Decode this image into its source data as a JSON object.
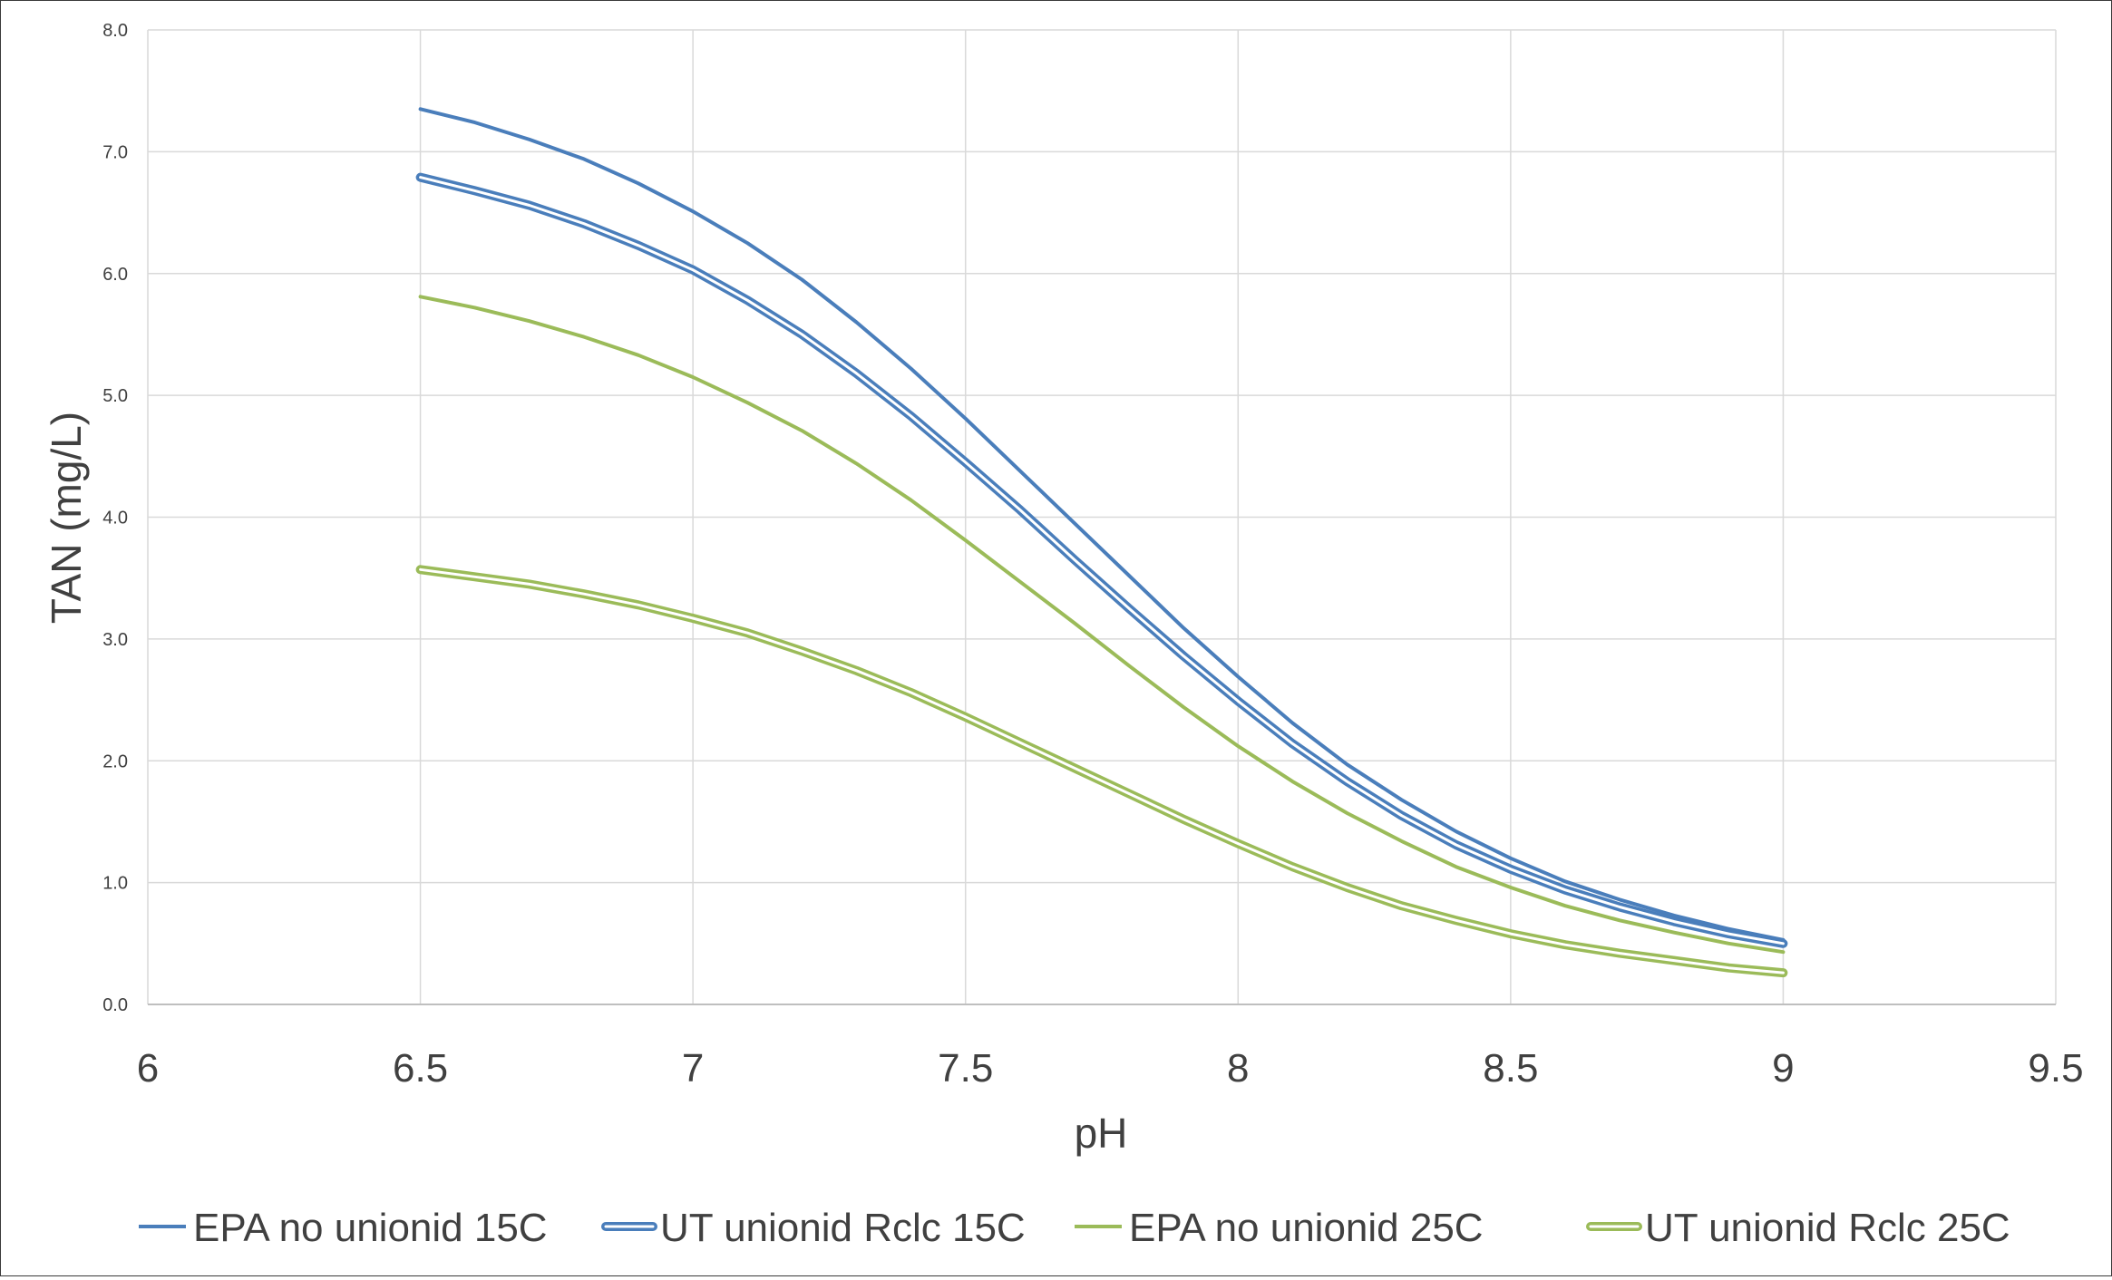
{
  "chart_data": {
    "type": "line",
    "title": "",
    "xlabel": "pH",
    "ylabel": "TAN (mg/L)",
    "xlim": [
      6,
      9.5
    ],
    "ylim": [
      0,
      8
    ],
    "x_ticks": [
      "6",
      "6.5",
      "7",
      "7.5",
      "8",
      "8.5",
      "9",
      "9.5"
    ],
    "y_ticks": [
      "0.0",
      "1.0",
      "2.0",
      "3.0",
      "4.0",
      "5.0",
      "6.0",
      "7.0",
      "8.0"
    ],
    "grid": true,
    "legend": "bottom",
    "x": [
      6.5,
      6.6,
      6.7,
      6.8,
      6.9,
      7.0,
      7.1,
      7.2,
      7.3,
      7.4,
      7.5,
      7.6,
      7.7,
      7.8,
      7.9,
      8.0,
      8.1,
      8.2,
      8.3,
      8.4,
      8.5,
      8.6,
      8.7,
      8.8,
      8.9,
      9.0
    ],
    "series": [
      {
        "name": "EPA no unionid 15C",
        "color": "#4a7ebb",
        "style": "single",
        "values": [
          7.35,
          7.24,
          7.1,
          6.94,
          6.74,
          6.51,
          6.25,
          5.95,
          5.6,
          5.22,
          4.81,
          4.38,
          3.95,
          3.52,
          3.09,
          2.69,
          2.31,
          1.97,
          1.68,
          1.42,
          1.2,
          1.01,
          0.86,
          0.73,
          0.62,
          0.53
        ]
      },
      {
        "name": "UT unionid Rclc 15C",
        "color": "#4a7ebb",
        "style": "double",
        "values": [
          6.79,
          6.68,
          6.56,
          6.41,
          6.23,
          6.03,
          5.78,
          5.5,
          5.18,
          4.83,
          4.45,
          4.06,
          3.65,
          3.25,
          2.86,
          2.49,
          2.14,
          1.83,
          1.55,
          1.31,
          1.11,
          0.94,
          0.8,
          0.68,
          0.58,
          0.5
        ]
      },
      {
        "name": "EPA no unionid 25C",
        "color": "#9bbb59",
        "style": "single",
        "values": [
          5.81,
          5.72,
          5.61,
          5.48,
          5.33,
          5.15,
          4.94,
          4.71,
          4.44,
          4.14,
          3.81,
          3.47,
          3.13,
          2.78,
          2.44,
          2.12,
          1.83,
          1.57,
          1.34,
          1.13,
          0.96,
          0.81,
          0.69,
          0.59,
          0.5,
          0.43
        ]
      },
      {
        "name": "UT unionid Rclc 25C",
        "color": "#9bbb59",
        "style": "double",
        "values": [
          3.57,
          3.51,
          3.45,
          3.37,
          3.28,
          3.17,
          3.05,
          2.9,
          2.74,
          2.56,
          2.36,
          2.15,
          1.94,
          1.73,
          1.52,
          1.32,
          1.13,
          0.96,
          0.81,
          0.69,
          0.58,
          0.49,
          0.42,
          0.36,
          0.3,
          0.26
        ]
      }
    ]
  }
}
